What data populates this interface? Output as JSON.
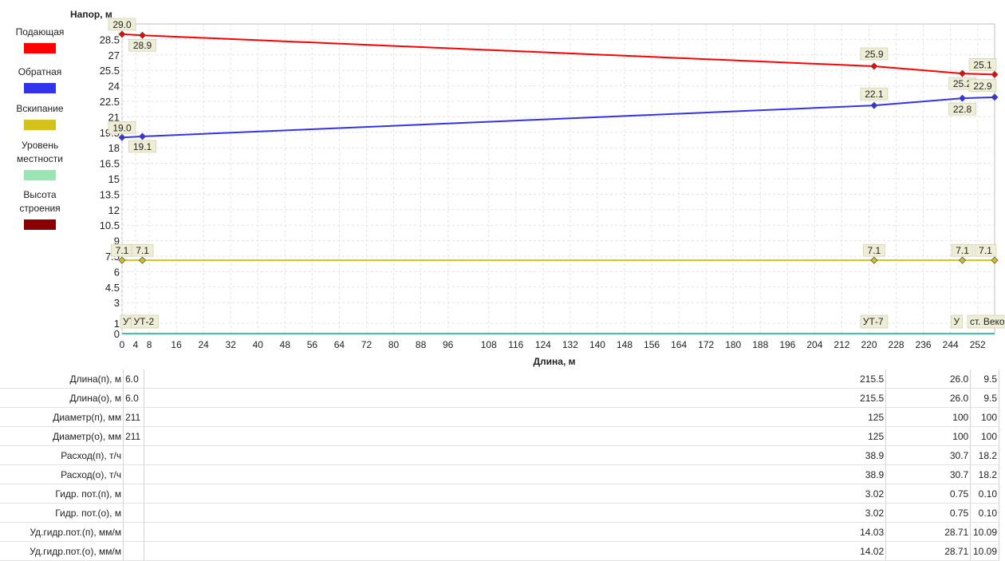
{
  "legend": [
    {
      "label": "Подающая",
      "color": "#ff0000"
    },
    {
      "label": "Обратная",
      "color": "#3333ee"
    },
    {
      "label": "Вскипание",
      "color": "#d4c21a"
    },
    {
      "label": "Уровень местности",
      "color": "#99e6b3"
    },
    {
      "label": "Высота строения",
      "color": "#8b0000"
    }
  ],
  "chart_data": {
    "type": "line",
    "ylabel": "Напор, м",
    "xlabel": "Длина, м",
    "ylim": [
      0,
      30
    ],
    "xlim": [
      0,
      257
    ],
    "grid": true,
    "legend_position": "left",
    "y_ticks": [
      0,
      1,
      3,
      4.5,
      6,
      7.5,
      9,
      10.5,
      12,
      13.5,
      15,
      16.5,
      18,
      19.5,
      21,
      22.5,
      24,
      25.5,
      27,
      28.5
    ],
    "y_tick_labels": [
      "0",
      "1",
      "3",
      "4.5",
      "6",
      "7.5",
      "9",
      "10.5",
      "12",
      "13.5",
      "15",
      "16.5",
      "18",
      "19.5",
      "21",
      "22.5",
      "24",
      "25.5",
      "27",
      "28.5"
    ],
    "x_ticks": [
      0,
      4,
      8,
      16,
      24,
      32,
      40,
      48,
      56,
      64,
      72,
      80,
      88,
      96,
      108,
      116,
      124,
      132,
      140,
      148,
      156,
      164,
      172,
      180,
      188,
      196,
      204,
      212,
      220,
      228,
      236,
      244,
      252
    ],
    "x_tick_labels": [
      "0",
      "4",
      "8",
      "16",
      "24",
      "32",
      "40",
      "48",
      "56",
      "64",
      "72",
      "80",
      "88",
      "96",
      "108",
      "116",
      "124",
      "132",
      "140",
      "148",
      "156",
      "164",
      "172",
      "180",
      "188",
      "196",
      "204",
      "212",
      "220",
      "228",
      "236",
      "244",
      "252"
    ],
    "series": [
      {
        "name": "Подающая",
        "color": "#ff0000",
        "x": [
          0,
          6,
          221.5,
          247.5,
          257
        ],
        "y": [
          29.0,
          28.9,
          25.9,
          25.2,
          25.1
        ],
        "labels": [
          "29.0",
          "28.9",
          "25.9",
          "25.2",
          "25.1"
        ]
      },
      {
        "name": "Обратная",
        "color": "#3333ee",
        "x": [
          0,
          6,
          221.5,
          247.5,
          257
        ],
        "y": [
          19.0,
          19.1,
          22.1,
          22.8,
          22.9
        ],
        "labels": [
          "19.0",
          "19.1",
          "22.1",
          "22.8",
          "22.9"
        ]
      },
      {
        "name": "Вскипание",
        "color": "#d4c21a",
        "x": [
          0,
          6,
          221.5,
          247.5,
          257
        ],
        "y": [
          7.1,
          7.1,
          7.1,
          7.1,
          7.1
        ],
        "labels": [
          "7.1",
          "7.1",
          "7.1",
          "7.1",
          "7.1"
        ]
      },
      {
        "name": "Уровень местности",
        "color": "#40c4a0",
        "x": [
          0,
          257
        ],
        "y": [
          0,
          0
        ],
        "labels": []
      }
    ],
    "node_labels": [
      {
        "x": 0,
        "text": "УТ-"
      },
      {
        "x": 6,
        "text": "УТ-2"
      },
      {
        "x": 221.5,
        "text": "УТ-7"
      },
      {
        "x": 247.5,
        "text": "У"
      },
      {
        "x": 257,
        "text": "ст. Вековк"
      }
    ]
  },
  "table": {
    "rows": [
      {
        "label": "Длина(п), м",
        "a": "6.0",
        "b": "215.5",
        "c": "26.0",
        "d": "9.5"
      },
      {
        "label": "Длина(о), м",
        "a": "6.0",
        "b": "215.5",
        "c": "26.0",
        "d": "9.5"
      },
      {
        "label": "Диаметр(п), мм",
        "a": "211",
        "b": "125",
        "c": "100",
        "d": "100"
      },
      {
        "label": "Диаметр(о), мм",
        "a": "211",
        "b": "125",
        "c": "100",
        "d": "100"
      },
      {
        "label": "Расход(п), т/ч",
        "a": "",
        "b": "38.9",
        "c": "30.7",
        "d": "18.2"
      },
      {
        "label": "Расход(о), т/ч",
        "a": "",
        "b": "38.9",
        "c": "30.7",
        "d": "18.2"
      },
      {
        "label": "Гидр. пот.(п), м",
        "a": "",
        "b": "3.02",
        "c": "0.75",
        "d": "0.10"
      },
      {
        "label": "Гидр. пот.(о), м",
        "a": "",
        "b": "3.02",
        "c": "0.75",
        "d": "0.10"
      },
      {
        "label": "Уд.гидр.пот.(п), мм/м",
        "a": "",
        "b": "14.03",
        "c": "28.71",
        "d": "10.09"
      },
      {
        "label": "Уд.гидр.пот.(о), мм/м",
        "a": "",
        "b": "14.02",
        "c": "28.71",
        "d": "10.09"
      }
    ]
  }
}
